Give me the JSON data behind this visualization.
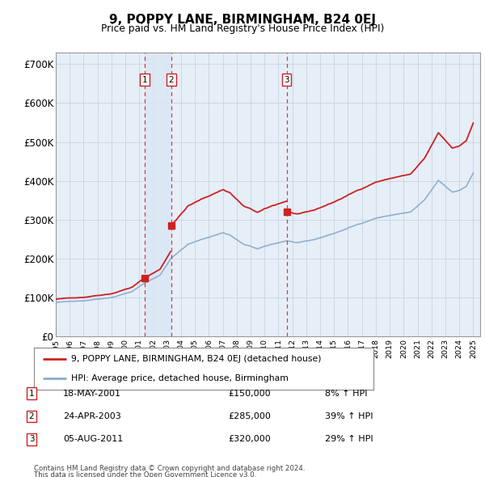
{
  "title": "9, POPPY LANE, BIRMINGHAM, B24 0EJ",
  "subtitle": "Price paid vs. HM Land Registry's House Price Index (HPI)",
  "footer1": "Contains HM Land Registry data © Crown copyright and database right 2024.",
  "footer2": "This data is licensed under the Open Government Licence v3.0.",
  "legend_line1": "9, POPPY LANE, BIRMINGHAM, B24 0EJ (detached house)",
  "legend_line2": "HPI: Average price, detached house, Birmingham",
  "transactions": [
    {
      "num": 1,
      "date": "18-MAY-2001",
      "price": 150000,
      "hpi_pct": "8% ↑ HPI",
      "year": 2001.37
    },
    {
      "num": 2,
      "date": "24-APR-2003",
      "price": 285000,
      "hpi_pct": "39% ↑ HPI",
      "year": 2003.31
    },
    {
      "num": 3,
      "date": "05-AUG-2011",
      "price": 320000,
      "hpi_pct": "29% ↑ HPI",
      "year": 2011.59
    }
  ],
  "red_color": "#cc2222",
  "blue_color": "#88aacc",
  "shade_color": "#dce8f5",
  "vline_color": "#cc2222",
  "box_color": "#cc2222",
  "bg_color": "#e6eef8",
  "grid_color": "#c8d4e0",
  "ylim": [
    0,
    730000
  ],
  "xlim_start": 1995.0,
  "xlim_end": 2025.5,
  "yticks": [
    0,
    100000,
    200000,
    300000,
    400000,
    500000,
    600000,
    700000
  ],
  "ylabels": [
    "£0",
    "£100K",
    "£200K",
    "£300K",
    "£400K",
    "£500K",
    "£600K",
    "£700K"
  ]
}
